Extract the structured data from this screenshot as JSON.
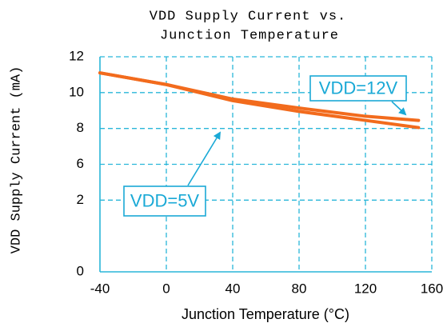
{
  "chart_data": {
    "type": "line",
    "title": [
      "VDD Supply Current vs.",
      "Junction Temperature"
    ],
    "x_label": "Junction Temperature (°C)",
    "y_label": "VDD Supply Current (mA)",
    "x": [
      -40,
      0,
      40,
      80,
      120,
      152
    ],
    "series": [
      {
        "name": "VDD=5V",
        "color": "#f26b1d",
        "values": [
          11.1,
          10.45,
          9.55,
          8.95,
          8.45,
          8.05
        ]
      },
      {
        "name": "VDD=12V",
        "color": "#f26b1d",
        "values": [
          11.1,
          10.45,
          9.64,
          9.14,
          8.68,
          8.45
        ]
      }
    ],
    "annotation_color": "#1aa9d6",
    "xlim": [
      -40,
      160
    ],
    "xticks": [
      -40,
      0,
      40,
      80,
      120,
      160
    ],
    "ylim": [
      0,
      12
    ],
    "yticks": [
      0,
      2,
      6,
      8,
      10,
      12
    ],
    "grid": true
  }
}
